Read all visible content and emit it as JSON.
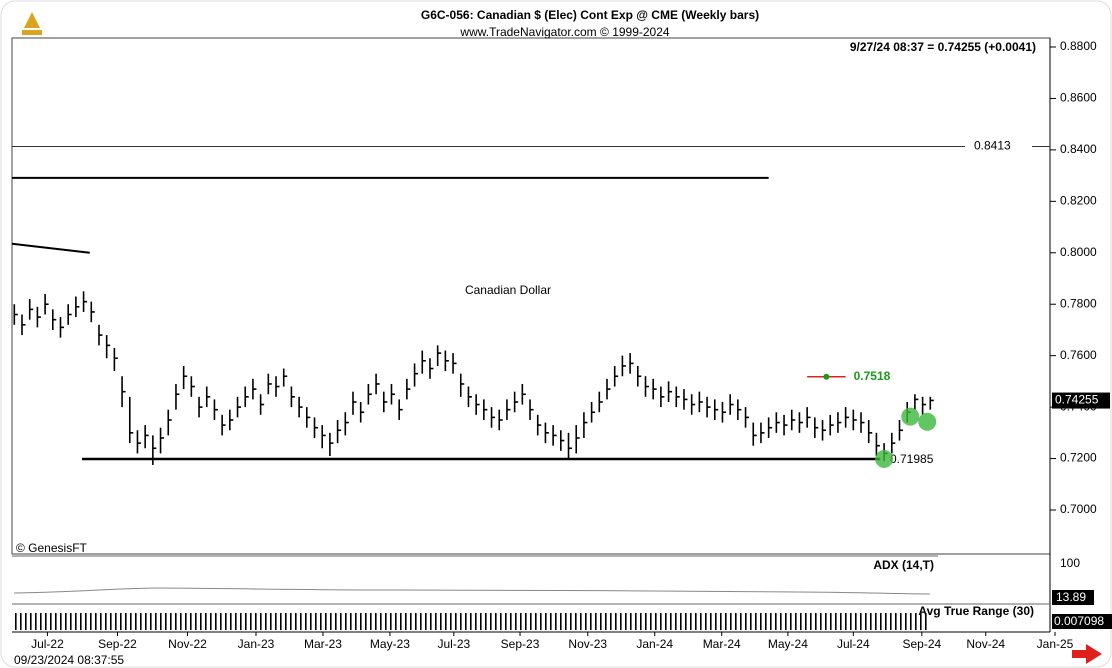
{
  "chart_data": {
    "type": "ohlc",
    "title": "G6C-056:  Canadian $ (Elec) Cont Exp @ CME  (Weekly bars)",
    "subtitle": "www.TradeNavigator.com © 1999-2024",
    "header": "9/27/24 08:37 = 0.74255 (+0.0041)",
    "annotation": "Canadian Dollar",
    "credit": "© GenesisFT",
    "timestamp": "09/23/2024 08:37:55",
    "color": "#000000",
    "close": [
      0.776,
      0.772,
      0.778,
      0.775,
      0.78,
      0.774,
      0.771,
      0.776,
      0.779,
      0.781,
      0.777,
      0.768,
      0.764,
      0.759,
      0.746,
      0.73,
      0.726,
      0.729,
      0.724,
      0.728,
      0.735,
      0.745,
      0.752,
      0.748,
      0.74,
      0.744,
      0.739,
      0.733,
      0.735,
      0.74,
      0.744,
      0.747,
      0.741,
      0.749,
      0.748,
      0.752,
      0.744,
      0.74,
      0.736,
      0.732,
      0.729,
      0.726,
      0.731,
      0.734,
      0.742,
      0.738,
      0.745,
      0.749,
      0.742,
      0.745,
      0.739,
      0.747,
      0.753,
      0.758,
      0.755,
      0.761,
      0.758,
      0.757,
      0.749,
      0.744,
      0.741,
      0.739,
      0.736,
      0.735,
      0.739,
      0.742,
      0.745,
      0.739,
      0.733,
      0.73,
      0.729,
      0.727,
      0.724,
      0.728,
      0.734,
      0.738,
      0.742,
      0.747,
      0.752,
      0.756,
      0.757,
      0.752,
      0.748,
      0.747,
      0.744,
      0.746,
      0.744,
      0.743,
      0.741,
      0.742,
      0.74,
      0.739,
      0.738,
      0.741,
      0.739,
      0.736,
      0.729,
      0.73,
      0.732,
      0.734,
      0.733,
      0.735,
      0.734,
      0.736,
      0.732,
      0.731,
      0.733,
      0.734,
      0.736,
      0.735,
      0.734,
      0.73,
      0.725,
      0.722,
      0.726,
      0.731,
      0.738,
      0.743,
      0.741,
      0.7426
    ],
    "high": [
      0.78,
      0.776,
      0.782,
      0.779,
      0.784,
      0.778,
      0.775,
      0.78,
      0.783,
      0.785,
      0.781,
      0.772,
      0.768,
      0.763,
      0.752,
      0.744,
      0.731,
      0.733,
      0.729,
      0.732,
      0.739,
      0.749,
      0.756,
      0.752,
      0.744,
      0.748,
      0.743,
      0.737,
      0.739,
      0.744,
      0.748,
      0.751,
      0.745,
      0.753,
      0.752,
      0.755,
      0.748,
      0.744,
      0.74,
      0.736,
      0.733,
      0.73,
      0.735,
      0.738,
      0.746,
      0.742,
      0.749,
      0.753,
      0.746,
      0.749,
      0.743,
      0.751,
      0.757,
      0.762,
      0.759,
      0.764,
      0.762,
      0.761,
      0.753,
      0.748,
      0.745,
      0.743,
      0.74,
      0.739,
      0.743,
      0.746,
      0.749,
      0.743,
      0.737,
      0.734,
      0.733,
      0.731,
      0.73,
      0.733,
      0.738,
      0.742,
      0.746,
      0.751,
      0.756,
      0.76,
      0.761,
      0.756,
      0.752,
      0.751,
      0.748,
      0.75,
      0.748,
      0.747,
      0.745,
      0.746,
      0.744,
      0.743,
      0.742,
      0.745,
      0.743,
      0.74,
      0.734,
      0.734,
      0.736,
      0.738,
      0.737,
      0.739,
      0.738,
      0.74,
      0.736,
      0.735,
      0.737,
      0.738,
      0.74,
      0.739,
      0.738,
      0.735,
      0.73,
      0.726,
      0.73,
      0.735,
      0.742,
      0.745,
      0.744,
      0.744
    ],
    "low": [
      0.772,
      0.768,
      0.774,
      0.771,
      0.776,
      0.77,
      0.767,
      0.772,
      0.775,
      0.777,
      0.773,
      0.764,
      0.759,
      0.754,
      0.74,
      0.726,
      0.722,
      0.724,
      0.7175,
      0.722,
      0.729,
      0.739,
      0.747,
      0.744,
      0.736,
      0.74,
      0.735,
      0.729,
      0.731,
      0.736,
      0.74,
      0.743,
      0.737,
      0.745,
      0.744,
      0.748,
      0.74,
      0.736,
      0.732,
      0.728,
      0.724,
      0.721,
      0.726,
      0.729,
      0.737,
      0.734,
      0.741,
      0.745,
      0.738,
      0.741,
      0.735,
      0.743,
      0.748,
      0.753,
      0.751,
      0.756,
      0.754,
      0.753,
      0.744,
      0.74,
      0.737,
      0.735,
      0.732,
      0.731,
      0.735,
      0.738,
      0.741,
      0.735,
      0.729,
      0.726,
      0.725,
      0.723,
      0.7195,
      0.722,
      0.728,
      0.734,
      0.738,
      0.743,
      0.748,
      0.752,
      0.753,
      0.748,
      0.744,
      0.743,
      0.74,
      0.742,
      0.74,
      0.739,
      0.737,
      0.738,
      0.736,
      0.735,
      0.734,
      0.737,
      0.735,
      0.732,
      0.725,
      0.726,
      0.728,
      0.73,
      0.729,
      0.731,
      0.73,
      0.732,
      0.728,
      0.727,
      0.729,
      0.73,
      0.732,
      0.731,
      0.73,
      0.726,
      0.721,
      0.719,
      0.722,
      0.727,
      0.734,
      0.739,
      0.737,
      0.739
    ],
    "xlim": [
      -0.3,
      136.5
    ],
    "xticks": [
      {
        "value": 4.3,
        "label": "Jul-22"
      },
      {
        "value": 13.4,
        "label": "Sep-22"
      },
      {
        "value": 22.5,
        "label": "Nov-22"
      },
      {
        "value": 31.4,
        "label": "Jan-23"
      },
      {
        "value": 40.1,
        "label": "Mar-23"
      },
      {
        "value": 48.8,
        "label": "May-23"
      },
      {
        "value": 57.1,
        "label": "Jul-23"
      },
      {
        "value": 65.7,
        "label": "Sep-23"
      },
      {
        "value": 74.5,
        "label": "Nov-23"
      },
      {
        "value": 83.2,
        "label": "Jan-24"
      },
      {
        "value": 91.9,
        "label": "Mar-24"
      },
      {
        "value": 100.5,
        "label": "May-24"
      },
      {
        "value": 109,
        "label": "Jul-24"
      },
      {
        "value": 117.9,
        "label": "Sep-24"
      },
      {
        "value": 126.2,
        "label": "Nov-24"
      },
      {
        "value": 135.2,
        "label": "Jan-25"
      }
    ],
    "ylim": [
      0.6925,
      0.8845
    ],
    "yticks": [
      {
        "value": 0.7,
        "label": "0.7000"
      },
      {
        "value": 0.72,
        "label": "0.7200"
      },
      {
        "value": 0.74,
        "label": "0.7400"
      },
      {
        "value": 0.76,
        "label": "0.7600"
      },
      {
        "value": 0.78,
        "label": "0.7800"
      },
      {
        "value": 0.8,
        "label": "0.8000"
      },
      {
        "value": 0.82,
        "label": "0.8200"
      },
      {
        "value": 0.84,
        "label": "0.8400"
      },
      {
        "value": 0.86,
        "label": "0.8600"
      },
      {
        "value": 0.88,
        "label": "0.8800"
      }
    ],
    "last": 0.74255,
    "level": 0.8413,
    "support": {
      "value": 0.71985,
      "x": [
        8.8,
        112.5
      ]
    },
    "target": {
      "value": 0.7518,
      "x": [
        103,
        108
      ]
    },
    "trend_lines": [
      {
        "x": [
          -0.3,
          98
        ],
        "y": [
          0.8291,
          0.8291
        ]
      },
      {
        "x": [
          -0.3,
          9.8
        ],
        "y": [
          0.8035,
          0.8
        ]
      }
    ],
    "markers": [
      {
        "x": 113,
        "y": 0.71985
      },
      {
        "x": 116.4,
        "y": 0.7363
      },
      {
        "x": 118.6,
        "y": 0.7343
      }
    ],
    "indicators": {
      "adx": {
        "name": "ADX (14,T)",
        "top": 100,
        "value": 13.89
      },
      "atr": {
        "name": "Avg True Range (30)",
        "value": 0.007098
      }
    }
  }
}
